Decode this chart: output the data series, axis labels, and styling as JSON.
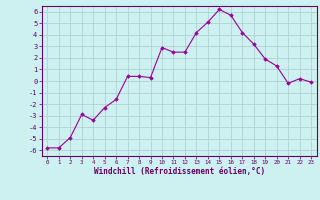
{
  "x": [
    0,
    1,
    2,
    3,
    4,
    5,
    6,
    7,
    8,
    9,
    10,
    11,
    12,
    13,
    14,
    15,
    16,
    17,
    18,
    19,
    20,
    21,
    22,
    23
  ],
  "y": [
    -5.8,
    -5.8,
    -4.9,
    -2.9,
    -3.4,
    -2.3,
    -1.6,
    0.4,
    0.4,
    0.3,
    2.9,
    2.5,
    2.5,
    4.2,
    5.1,
    6.2,
    5.7,
    4.2,
    3.2,
    1.9,
    1.3,
    -0.2,
    0.2,
    -0.1
  ],
  "line_color": "#990099",
  "marker": "D",
  "marker_size": 1.8,
  "xlim": [
    -0.5,
    23.5
  ],
  "ylim": [
    -6.5,
    6.5
  ],
  "yticks": [
    -6,
    -5,
    -4,
    -3,
    -2,
    -1,
    0,
    1,
    2,
    3,
    4,
    5,
    6
  ],
  "xticks": [
    0,
    1,
    2,
    3,
    4,
    5,
    6,
    7,
    8,
    9,
    10,
    11,
    12,
    13,
    14,
    15,
    16,
    17,
    18,
    19,
    20,
    21,
    22,
    23
  ],
  "xlabel": "Windchill (Refroidissement éolien,°C)",
  "bg_color": "#cdf0f0",
  "grid_color": "#aacccc",
  "axis_color": "#660066",
  "tick_color": "#660066"
}
